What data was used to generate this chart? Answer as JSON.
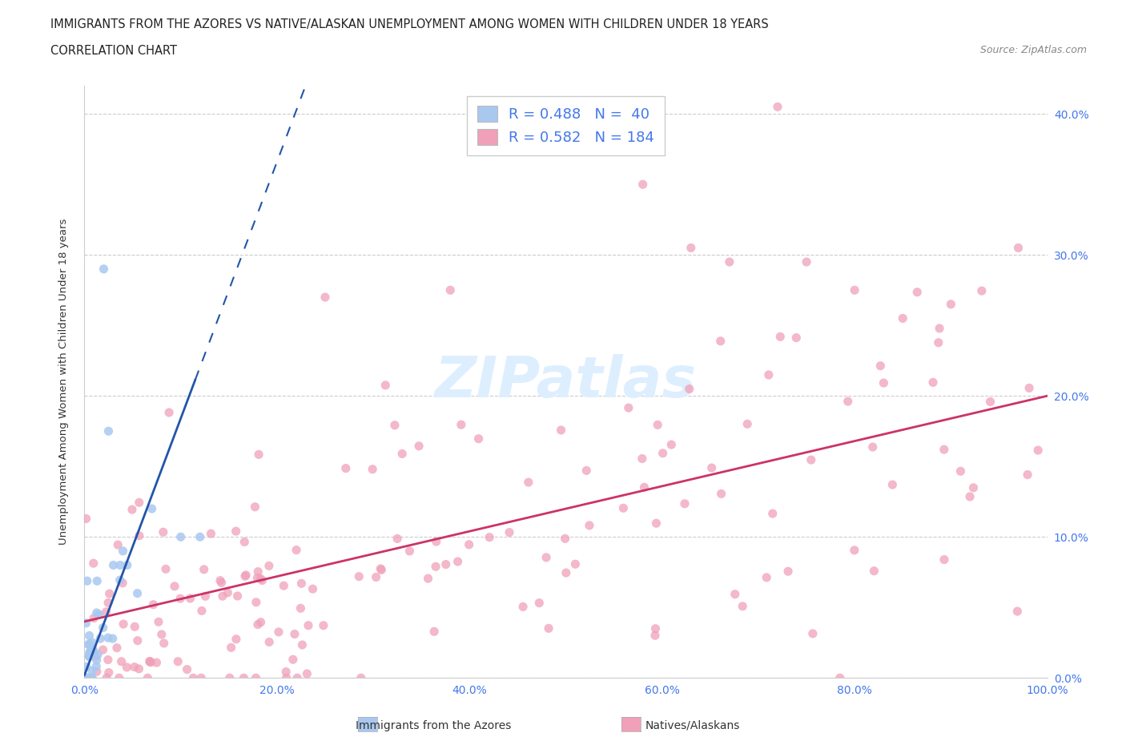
{
  "title_line1": "IMMIGRANTS FROM THE AZORES VS NATIVE/ALASKAN UNEMPLOYMENT AMONG WOMEN WITH CHILDREN UNDER 18 YEARS",
  "title_line2": "CORRELATION CHART",
  "source_text": "Source: ZipAtlas.com",
  "ylabel": "Unemployment Among Women with Children Under 18 years",
  "xlim": [
    0.0,
    1.0
  ],
  "ylim": [
    0.0,
    0.42
  ],
  "x_ticks": [
    0.0,
    0.2,
    0.4,
    0.6,
    0.8,
    1.0
  ],
  "x_tick_labels": [
    "0.0%",
    "20.0%",
    "40.0%",
    "60.0%",
    "80.0%",
    "100.0%"
  ],
  "y_ticks": [
    0.0,
    0.1,
    0.2,
    0.3,
    0.4
  ],
  "y_tick_labels": [
    "0.0%",
    "10.0%",
    "20.0%",
    "30.0%",
    "40.0%"
  ],
  "r_azores": 0.488,
  "n_azores": 40,
  "r_native": 0.582,
  "n_native": 184,
  "color_azores": "#a8c8f0",
  "color_native": "#f0a0b8",
  "color_regression_azores": "#2255aa",
  "color_regression_native": "#cc3366",
  "color_text_r": "#4477ee",
  "background_color": "#ffffff",
  "watermark_color": "#ddeeff"
}
